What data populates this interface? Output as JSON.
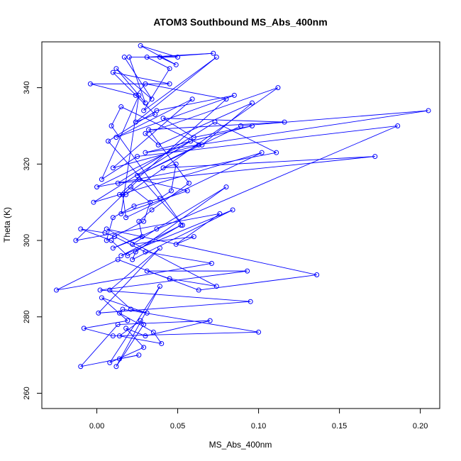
{
  "chart_data": {
    "type": "line",
    "title": "ATOM3 Southbound MS_Abs_400nm",
    "xlabel": "MS_Abs_400nm",
    "ylabel": "Theta (K)",
    "xlim": [
      -0.034,
      0.212
    ],
    "ylim": [
      256,
      352
    ],
    "xticks": [
      0.0,
      0.05,
      0.1,
      0.15,
      0.2
    ],
    "xtick_labels": [
      "0.00",
      "0.05",
      "0.10",
      "0.15",
      "0.20"
    ],
    "yticks": [
      260,
      280,
      300,
      320,
      340
    ],
    "ytick_labels": [
      "260",
      "280",
      "300",
      "320",
      "340"
    ],
    "grid": false,
    "legend": "none",
    "series": [
      {
        "color": "#0000ff",
        "marker": "open-circle",
        "x": [
          0.017,
          0.034,
          0.012,
          0.03,
          0.02,
          0.05,
          0.027,
          0.049,
          0.039,
          0.072,
          0.031,
          0.045,
          0.029,
          0.074,
          0.024,
          0.036,
          0.01,
          0.045,
          -0.004,
          0.024,
          0.03,
          0.08,
          0.014,
          0.018,
          0.112,
          0.03,
          0.038,
          0.096,
          0.065,
          0.015,
          0.009,
          0.053,
          0.007,
          0.037,
          0.085,
          0.012,
          0.059,
          0.01,
          0.063,
          0.025,
          0.089,
          0.205,
          0.03,
          0.096,
          0.06,
          0.041,
          0.116,
          0.032,
          0.057,
          0.034,
          0.026,
          0.028,
          0.01,
          0.186,
          0.025,
          0.003,
          0.026,
          0.015,
          0.056,
          0.026,
          0.016,
          0.018,
          0.102,
          -0.002,
          0.058,
          0.0,
          0.111,
          0.073,
          0.013,
          0.172,
          0.041,
          0.049,
          0.046,
          0.039,
          0.023,
          0.01,
          0.006,
          0.029,
          0.033,
          0.021,
          -0.013,
          0.076,
          0.049,
          0.06,
          0.022,
          0.037,
          0.08,
          0.024,
          0.022,
          0.084,
          0.015,
          0.052,
          0.019,
          0.009,
          -0.01,
          0.005,
          0.011,
          0.03,
          0.071,
          -0.025,
          0.013,
          0.063,
          0.136,
          0.006,
          0.074,
          0.045,
          0.031,
          0.093,
          0.002,
          0.095,
          0.001,
          0.039,
          0.008,
          0.021,
          0.031,
          0.003,
          0.019,
          -0.008,
          0.01,
          0.1,
          0.016,
          0.014,
          0.035,
          0.04,
          0.014,
          0.027,
          0.029,
          0.012,
          0.039,
          0.008,
          0.029,
          0.018,
          0.03,
          0.07,
          0.013,
          -0.01,
          0.026,
          0.014
        ],
        "y": [
          348,
          337,
          345,
          336,
          348,
          348,
          351,
          346,
          348,
          349,
          348,
          345,
          334,
          348,
          331,
          333,
          344,
          341,
          341,
          338,
          341,
          337,
          312,
          312,
          340,
          328,
          325,
          336,
          325,
          335,
          330,
          304,
          326,
          334,
          338,
          327,
          337,
          319,
          325,
          317,
          330,
          334,
          323,
          330,
          327,
          332,
          331,
          329,
          315,
          308,
          305,
          301,
          298,
          330,
          322,
          316,
          338,
          307,
          313,
          316,
          312,
          306,
          323,
          310,
          326,
          314,
          323,
          331,
          315,
          322,
          319,
          320,
          313,
          311,
          309,
          306,
          300,
          305,
          310,
          314,
          300,
          307,
          299,
          301,
          299,
          303,
          314,
          297,
          295,
          308,
          296,
          304,
          296,
          300,
          303,
          302,
          301,
          297,
          294,
          287,
          295,
          287,
          291,
          303,
          288,
          290,
          292,
          292,
          287,
          284,
          281,
          298,
          287,
          282,
          281,
          285,
          279,
          277,
          275,
          276,
          282,
          281,
          276,
          273,
          275,
          279,
          278,
          267,
          288,
          268,
          272,
          277,
          275,
          279,
          278,
          267,
          270,
          269
        ]
      }
    ]
  }
}
